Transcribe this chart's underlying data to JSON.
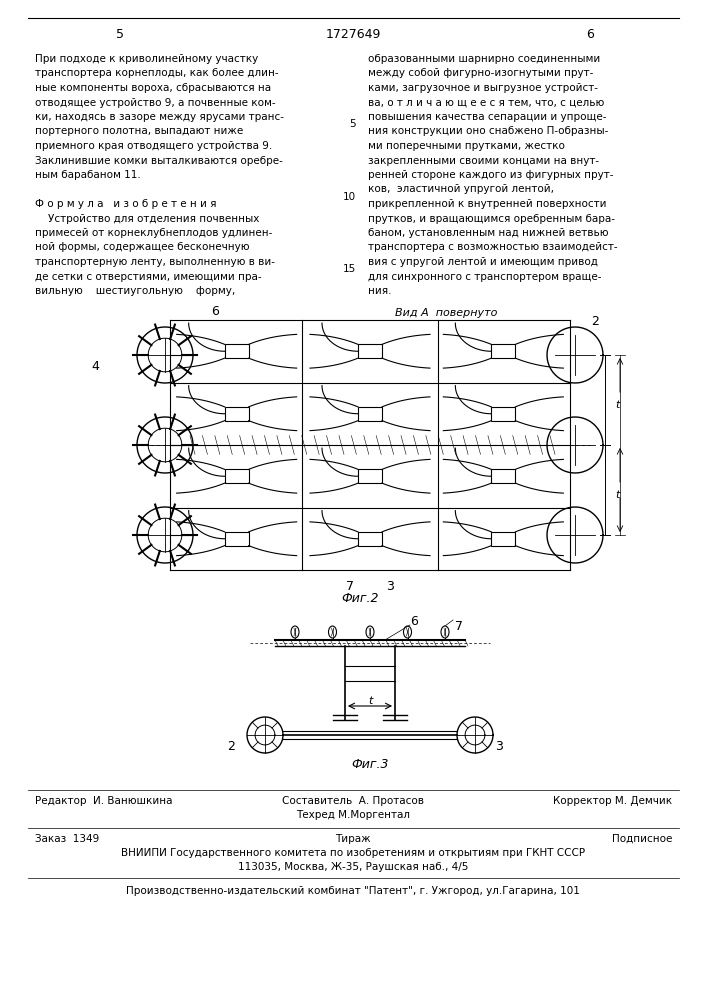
{
  "page_number_left": "5",
  "patent_number": "1727649",
  "page_number_right": "6",
  "background_color": "#ffffff",
  "text_color": "#000000",
  "left_col_lines": [
    "При подходе к криволинейному участку",
    "транспортера корнеплоды, как более длин-",
    "ные компоненты вороха, сбрасываются на",
    "отводящее устройство 9, а почвенные ком-",
    "ки, находясь в зазоре между ярусами транс-",
    "портерного полотна, выпадают ниже",
    "приемного края отводящего устройства 9.",
    "Заклинившие комки выталкиваются оребре-",
    "ным барабаном 11.",
    "",
    "Ф о р м у л а   и з о б р е т е н и я",
    "    Устройство для отделения почвенных",
    "примесей от корнеклубнеплодов удлинен-",
    "ной формы, содержащее бесконечную",
    "транспортерную ленту, выполненную в ви-",
    "де сетки с отверстиями, имеющими пра-",
    "вильную    шестиугольную    форму,"
  ],
  "right_col_lines": [
    "образованными шарнирно соединенными",
    "между собой фигурно-изогнутыми прут-",
    "ками, загрузочное и выгрузное устройст-",
    "ва, о т л и ч а ю щ е е с я тем, что, с целью",
    "повышения качества сепарации и упроще-",
    "ния конструкции оно снабжено П-образны-",
    "ми поперечными прутками, жестко",
    "закрепленными своими концами на внут-",
    "ренней стороне каждого из фигурных прут-",
    "ков,  эластичной упругой лентой,",
    "прикрепленной к внутренней поверхности",
    "прутков, и вращающимся оребренным бара-",
    "баном, установленным над нижней ветвью",
    "транспортера с возможностью взаимодейст-",
    "вия с упругой лентой и имеющим привод",
    "для синхронного с транспортером враще-",
    "ния."
  ],
  "line_numbers": [
    "5",
    "10",
    "15"
  ],
  "fig2_label": "Фиг.2",
  "fig3_label": "Фиг.3",
  "vid_a_label": "Вид А  повернуто",
  "footer_editor": "Редактор  И. Ванюшкина",
  "footer_composer": "Составитель  А. Протасов",
  "footer_techred": "Техред М.Моргентал",
  "footer_corrector": "Корректор М. Демчик",
  "footer_order": "Заказ  1349",
  "footer_tirazh": "Тираж",
  "footer_podpisnoe": "Подписное",
  "footer_vniiipi": "ВНИИПИ Государственного комитета по изобретениям и открытиям при ГКНТ СССР",
  "footer_address": "113035, Москва, Ж-35, Раушская наб., 4/5",
  "footer_proizv": "Производственно-издательский комбинат \"Патент\", г. Ужгород, ул.Гагарина, 101"
}
